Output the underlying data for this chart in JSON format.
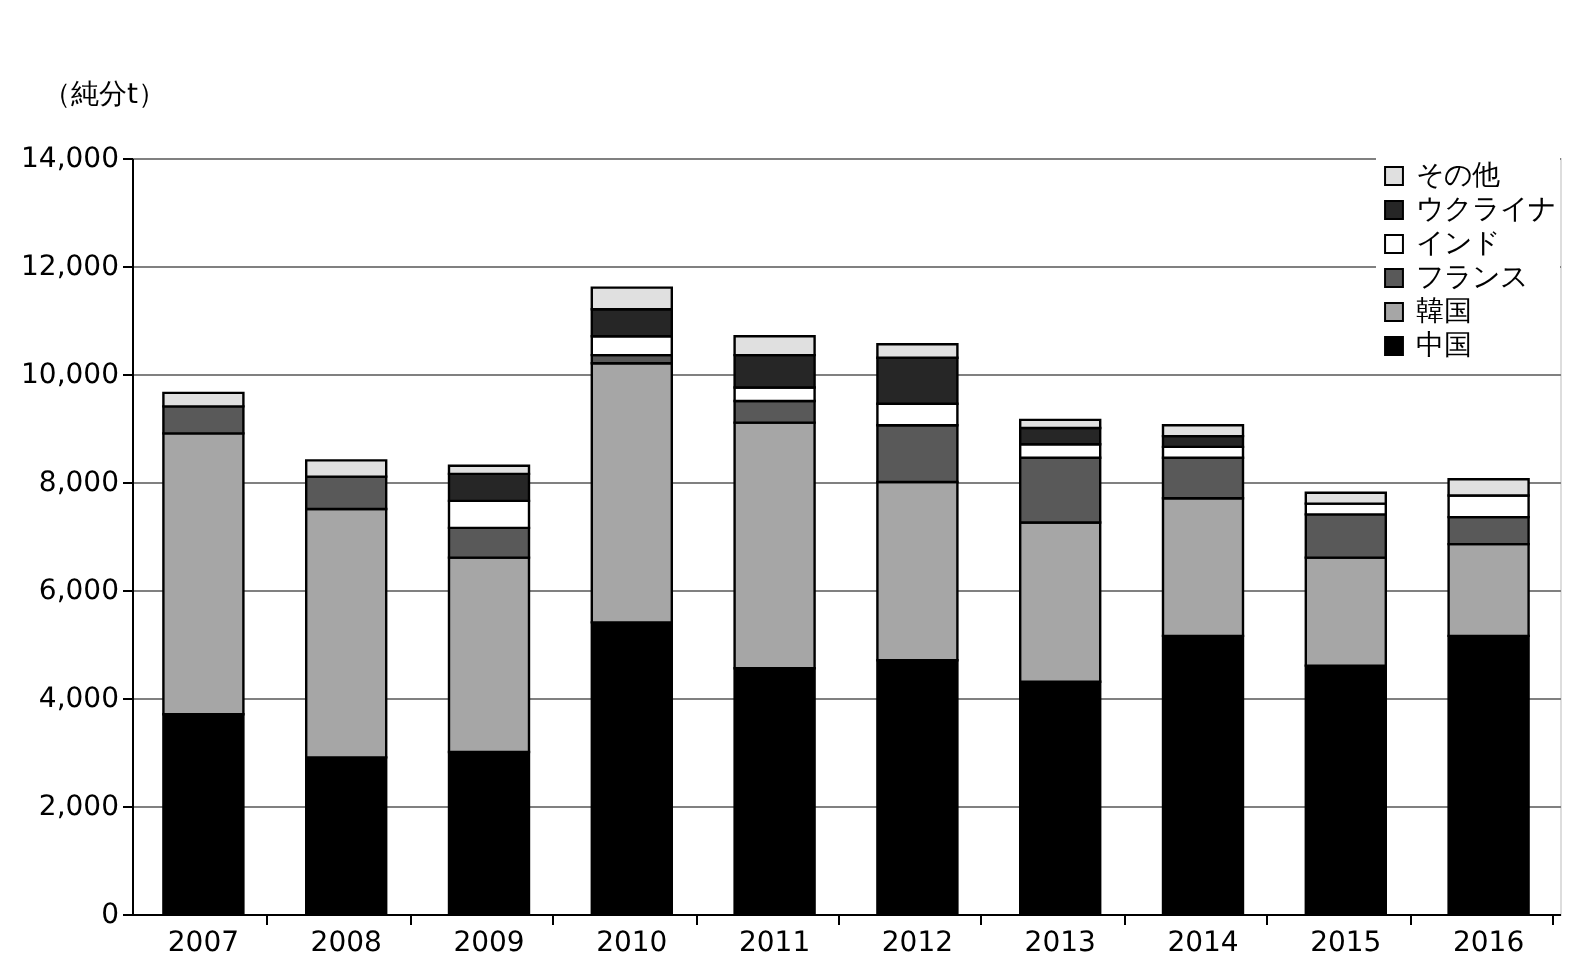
{
  "chart_data": {
    "type": "bar",
    "stacked": true,
    "ylabel": "（純分t）",
    "categories": [
      "2007",
      "2008",
      "2009",
      "2010",
      "2011",
      "2012",
      "2013",
      "2014",
      "2015",
      "2016"
    ],
    "series": [
      {
        "name": "中国",
        "color": "#000000",
        "values": [
          3700,
          2900,
          3000,
          5400,
          4550,
          4700,
          4300,
          5150,
          4600,
          5150
        ]
      },
      {
        "name": "韓国",
        "color": "#a6a6a6",
        "values": [
          5200,
          4600,
          3600,
          4800,
          4550,
          3300,
          2950,
          2550,
          2000,
          1700
        ]
      },
      {
        "name": "フランス",
        "color": "#595959",
        "values": [
          500,
          600,
          550,
          150,
          400,
          1050,
          1200,
          750,
          800,
          500
        ]
      },
      {
        "name": "インド",
        "color": "#ffffff",
        "values": [
          null,
          null,
          500,
          350,
          250,
          400,
          250,
          200,
          200,
          400
        ]
      },
      {
        "name": "ウクライナ",
        "color": "#262626",
        "values": [
          null,
          null,
          500,
          500,
          600,
          850,
          300,
          200,
          null,
          null
        ]
      },
      {
        "name": "その他",
        "color": "#e0e0e0",
        "values": [
          250,
          300,
          150,
          400,
          350,
          250,
          150,
          200,
          200,
          300
        ]
      }
    ],
    "ylim": [
      0,
      14000
    ],
    "yticks": [
      0,
      {
        "value": 2000,
        "label": "2,000"
      },
      {
        "value": 4000,
        "label": "4,000"
      },
      {
        "value": 6000,
        "label": "6,000"
      },
      {
        "value": 8000,
        "label": "8,000"
      },
      {
        "value": 10000,
        "label": "10,000"
      },
      {
        "value": 12000,
        "label": "12,000"
      },
      {
        "value": 14000,
        "label": "14,000"
      }
    ],
    "grid": "y",
    "legend": "top right"
  }
}
